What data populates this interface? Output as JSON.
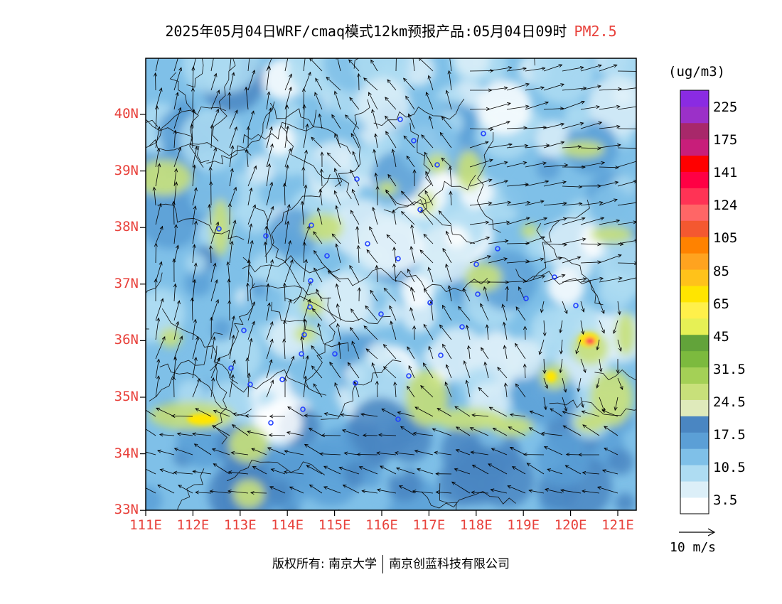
{
  "title": {
    "main": "2025年05月04日WRF/cmaq模式12km预报产品:05月04日09时",
    "pollutant": "PM2.5"
  },
  "axes": {
    "lat_labels": [
      "40N",
      "39N",
      "38N",
      "37N",
      "36N",
      "35N",
      "34N",
      "33N"
    ],
    "lon_labels": [
      "111E",
      "112E",
      "113E",
      "114E",
      "115E",
      "116E",
      "117E",
      "118E",
      "119E",
      "120E",
      "121E"
    ]
  },
  "legend": {
    "unit": "(ug/m3)",
    "labels": [
      "225",
      "175",
      "141",
      "124",
      "105",
      "85",
      "65",
      "45",
      "31.5",
      "24.5",
      "17.5",
      "10.5",
      "3.5"
    ],
    "colors": [
      "#ffffff",
      "#dceff8",
      "#aedcf2",
      "#7fc0e8",
      "#5b9fd6",
      "#4a86c2",
      "#dfeabb",
      "#c8e07a",
      "#a4d056",
      "#7cba3e",
      "#62a33a",
      "#e6f055",
      "#fff04a",
      "#ffe500",
      "#ffc21a",
      "#ffa31f",
      "#ff8200",
      "#f45830",
      "#ff6666",
      "#ff3355",
      "#ff0044",
      "#ff0000",
      "#c81e7a",
      "#a8286a",
      "#9b30c8",
      "#8a2be2"
    ]
  },
  "wind_scale": {
    "label": "10 m/s"
  },
  "copyright": {
    "left": "版权所有: 南京大学",
    "right": "南京创蓝科技有限公司"
  },
  "station_count": 36
}
